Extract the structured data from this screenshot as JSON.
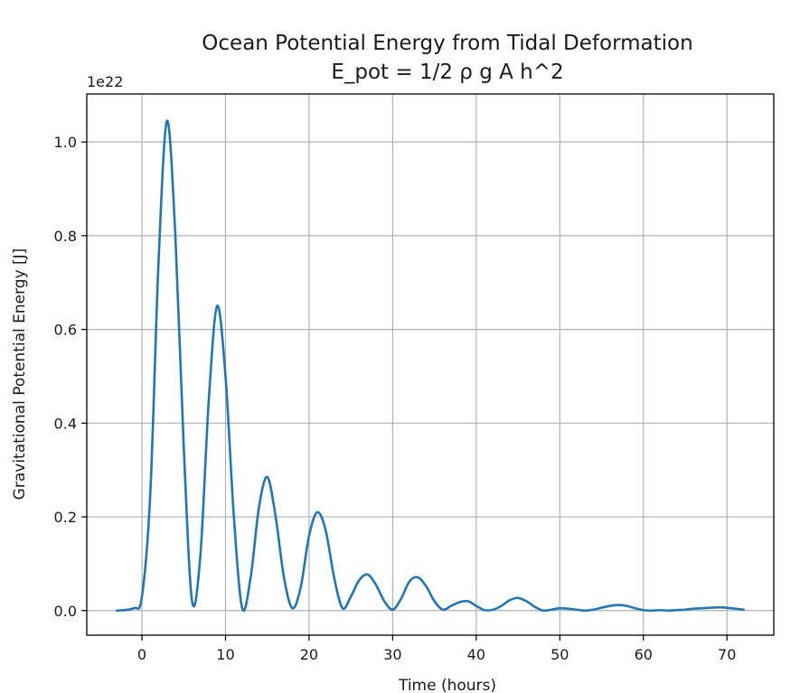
{
  "chart_data": {
    "type": "line",
    "title": "Ocean Potential Energy from Tidal Deformation",
    "subtitle": "E_pot = 1/2 ρ g A h^2",
    "xlabel": "Time (hours)",
    "ylabel": "Gravitational Potential Energy [J]",
    "offset_text": "1e22",
    "scale_factor": 1e+22,
    "xlim": [
      -6.6,
      75.6
    ],
    "ylim": [
      -0.0525,
      1.1025
    ],
    "xticks": [
      0,
      10,
      20,
      30,
      40,
      50,
      60,
      70
    ],
    "xtick_labels": [
      "0",
      "10",
      "20",
      "30",
      "40",
      "50",
      "60",
      "70"
    ],
    "yticks": [
      0.0,
      0.2,
      0.4,
      0.6,
      0.8,
      1.0
    ],
    "ytick_labels": [
      "0.0",
      "0.2",
      "0.4",
      "0.6",
      "0.8",
      "1.0"
    ],
    "grid": true,
    "series_color": "#1f77b4",
    "series": [
      {
        "x": [
          -3,
          -1,
          0,
          1,
          2,
          3,
          4,
          5,
          6,
          7,
          8,
          9,
          10,
          11,
          12,
          13,
          14,
          15,
          16,
          17,
          18,
          19,
          20,
          21,
          22,
          23,
          24,
          25,
          26,
          27,
          28,
          29,
          30,
          31,
          32,
          33,
          34,
          35,
          36,
          37,
          38,
          39,
          40,
          41,
          42,
          43,
          44,
          45,
          46,
          47,
          48,
          49,
          50,
          51,
          52,
          53,
          54,
          55,
          56,
          57,
          58,
          59,
          60,
          61,
          62,
          63,
          64,
          65,
          66,
          67,
          68,
          69,
          70,
          71,
          72
        ],
        "values": [
          0.0,
          0.005,
          0.03,
          0.25,
          0.75,
          1.045,
          0.8,
          0.35,
          0.02,
          0.12,
          0.45,
          0.65,
          0.5,
          0.2,
          0.005,
          0.07,
          0.22,
          0.285,
          0.2,
          0.07,
          0.005,
          0.05,
          0.16,
          0.21,
          0.17,
          0.07,
          0.005,
          0.03,
          0.065,
          0.077,
          0.055,
          0.02,
          0.002,
          0.025,
          0.062,
          0.071,
          0.052,
          0.02,
          0.002,
          0.01,
          0.018,
          0.02,
          0.01,
          0.001,
          0.002,
          0.01,
          0.022,
          0.027,
          0.02,
          0.008,
          0.0,
          0.002,
          0.005,
          0.004,
          0.002,
          0.0,
          0.002,
          0.006,
          0.01,
          0.012,
          0.01,
          0.005,
          0.001,
          0.0,
          0.001,
          0.0,
          0.001,
          0.002,
          0.004,
          0.005,
          0.006,
          0.007,
          0.006,
          0.004,
          0.002
        ]
      }
    ]
  }
}
